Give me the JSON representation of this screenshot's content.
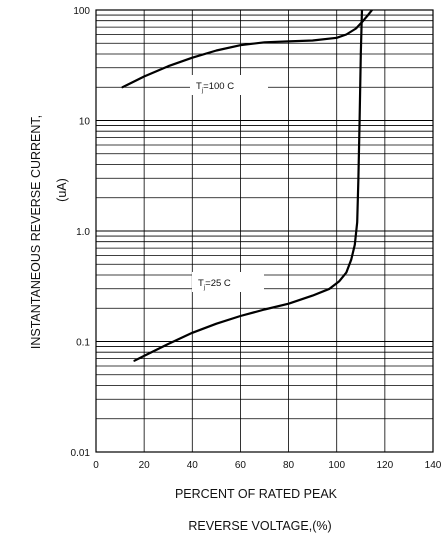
{
  "chart_data": {
    "type": "line",
    "title": "",
    "xlabel_line1": "PERCENT OF RATED PEAK",
    "xlabel_line2": "REVERSE VOLTAGE,(%)",
    "ylabel_line1": "INSTANTANEOUS REVERSE CURRENT,",
    "ylabel_line2": "(uA)",
    "xlim": [
      0,
      140
    ],
    "ylim": [
      0.01,
      100
    ],
    "yscale": "log",
    "grid": true,
    "x_ticks": [
      "0",
      "20",
      "40",
      "60",
      "80",
      "100",
      "120",
      "140"
    ],
    "y_ticks": [
      "0.01",
      "0.1",
      "1.0",
      "10",
      "100"
    ],
    "series": [
      {
        "label_main": "T",
        "label_sub": "j",
        "label_rest": "=100    C",
        "points": [
          [
            11,
            20
          ],
          [
            20,
            25
          ],
          [
            30,
            31
          ],
          [
            40,
            37
          ],
          [
            50,
            43
          ],
          [
            60,
            48
          ],
          [
            70,
            51
          ],
          [
            80,
            52
          ],
          [
            90,
            53
          ],
          [
            100,
            56
          ],
          [
            104,
            60
          ],
          [
            108,
            68
          ],
          [
            111,
            80
          ],
          [
            113,
            90
          ],
          [
            115,
            102
          ]
        ]
      },
      {
        "label_main": "T",
        "label_sub": "j",
        "label_rest": "=25    C",
        "points": [
          [
            16,
            0.067
          ],
          [
            20,
            0.074
          ],
          [
            30,
            0.095
          ],
          [
            40,
            0.12
          ],
          [
            50,
            0.145
          ],
          [
            60,
            0.17
          ],
          [
            70,
            0.195
          ],
          [
            80,
            0.22
          ],
          [
            90,
            0.26
          ],
          [
            97,
            0.3
          ],
          [
            101,
            0.35
          ],
          [
            104,
            0.42
          ],
          [
            106,
            0.55
          ],
          [
            107.5,
            0.75
          ],
          [
            108.5,
            1.2
          ],
          [
            109,
            3
          ],
          [
            109.5,
            10
          ],
          [
            110,
            40
          ],
          [
            110.5,
            102
          ]
        ]
      }
    ]
  }
}
